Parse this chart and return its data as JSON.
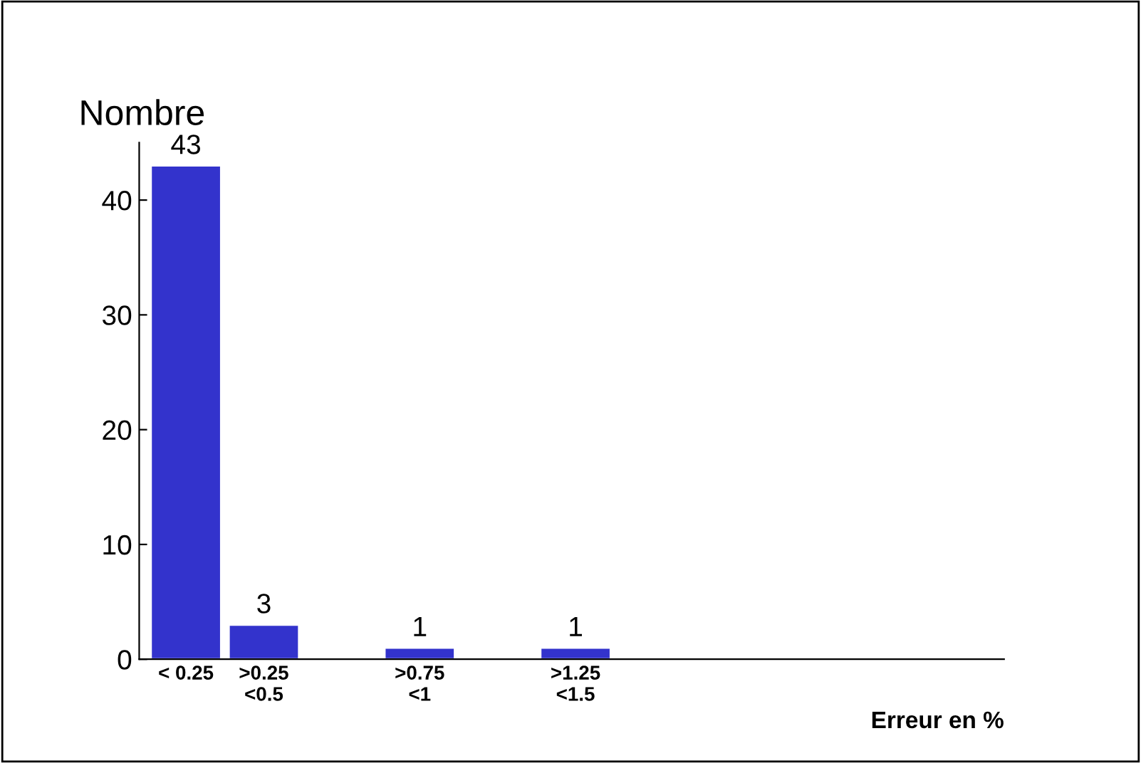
{
  "chart_data": {
    "type": "bar",
    "ylabel": "Nombre",
    "xlabel": "Erreur en %",
    "categories": [
      "< 0.25",
      ">0.25\n<0.5",
      null,
      ">0.75\n<1",
      null,
      ">1.25\n<1.5",
      null,
      null,
      null,
      null,
      null
    ],
    "values": [
      43,
      3,
      null,
      1,
      null,
      1,
      null,
      null,
      null,
      null,
      null
    ],
    "color": "#3333cc",
    "ylim": [
      0,
      45
    ],
    "yticks": [
      0,
      10,
      20,
      30,
      40
    ],
    "data_labels": true,
    "grid": false,
    "legend": false
  }
}
